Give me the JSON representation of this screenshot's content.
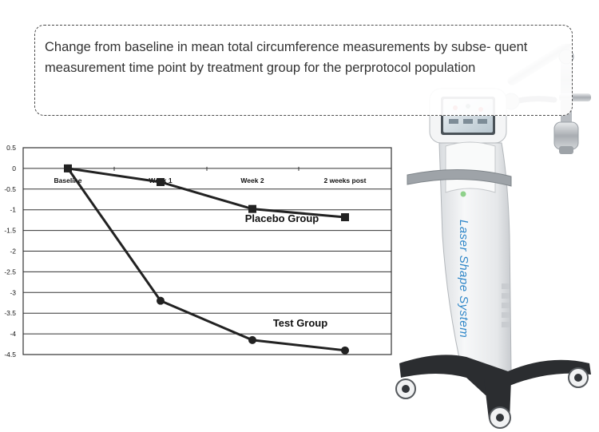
{
  "caption": "Change from baseline in mean total circumference measurements by subse- quent measurement time point by treatment group for the perprotocol population",
  "chart_data": {
    "type": "line",
    "title": "",
    "xlabel": "",
    "ylabel": "",
    "categories": [
      "Baseline",
      "Week 1",
      "Week 2",
      "2 weeks post"
    ],
    "ylim": [
      -4.5,
      0.5
    ],
    "yticks": [
      0.5,
      0,
      -0.5,
      -1,
      -1.5,
      -2,
      -2.5,
      -3,
      -3.5,
      -4,
      -4.5
    ],
    "ytick_labels": [
      "0.5",
      "0",
      "-0.5",
      "-1",
      "-1.5",
      "-2",
      "-2.5",
      "-3",
      "-3.5",
      "-4",
      "-4.5"
    ],
    "grid": true,
    "series": [
      {
        "name": "Placebo Group",
        "values": [
          0,
          -0.33,
          -0.98,
          -1.18
        ],
        "marker": "square",
        "color": "#222222"
      },
      {
        "name": "Test Group",
        "values": [
          0,
          -3.2,
          -4.15,
          -4.4
        ],
        "marker": "circle",
        "color": "#222222"
      }
    ]
  },
  "product": {
    "label": "Laser Shape System",
    "body_color": "#eef0f2",
    "accent_color": "#2e86c8"
  }
}
